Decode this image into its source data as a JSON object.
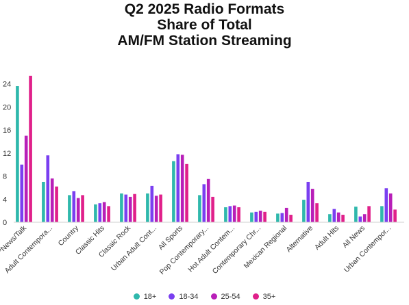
{
  "chart_data": {
    "type": "bar",
    "title_lines": [
      "Q2 2025 Radio Formats",
      "Share of Total",
      "AM/FM Station Streaming"
    ],
    "categories": [
      "*News/Talk",
      "Adult Contempora...",
      "Country",
      "Classic Hits",
      "Classic Rock",
      "Urban Adult Cont...",
      "All Sports",
      "Pop Contemporary...",
      "Hot Adult Contem...",
      "Contemporary Chr...",
      "Mexican Regional",
      "Alternative",
      "Adult Hits",
      "All News",
      "Urban Contempor..."
    ],
    "yticks": [
      0,
      4,
      8,
      12,
      16,
      20,
      24
    ],
    "ylim": [
      0,
      25.5
    ],
    "grid": false,
    "legend_position": "bottom",
    "series": [
      {
        "name": "18+",
        "color": "#2fb8ac",
        "values": [
          23.6,
          7.0,
          4.7,
          3.1,
          5.0,
          5.0,
          10.6,
          4.7,
          2.6,
          1.7,
          1.5,
          3.9,
          1.4,
          2.7,
          2.8
        ]
      },
      {
        "name": "18-34",
        "color": "#7a3ff0",
        "values": [
          10.0,
          11.6,
          5.4,
          3.3,
          4.8,
          6.3,
          11.8,
          6.6,
          2.8,
          1.8,
          1.6,
          7.0,
          2.3,
          1.0,
          5.9
        ]
      },
      {
        "name": "25-54",
        "color": "#b81fb8",
        "values": [
          15.0,
          7.6,
          4.2,
          3.5,
          4.4,
          4.6,
          11.7,
          7.5,
          2.9,
          2.0,
          2.5,
          5.8,
          1.7,
          1.4,
          5.0
        ]
      },
      {
        "name": "35+",
        "color": "#e0208a",
        "values": [
          25.4,
          6.2,
          4.7,
          2.8,
          4.9,
          4.8,
          10.1,
          4.4,
          2.6,
          1.8,
          1.3,
          3.3,
          1.3,
          2.8,
          2.2
        ]
      }
    ]
  }
}
